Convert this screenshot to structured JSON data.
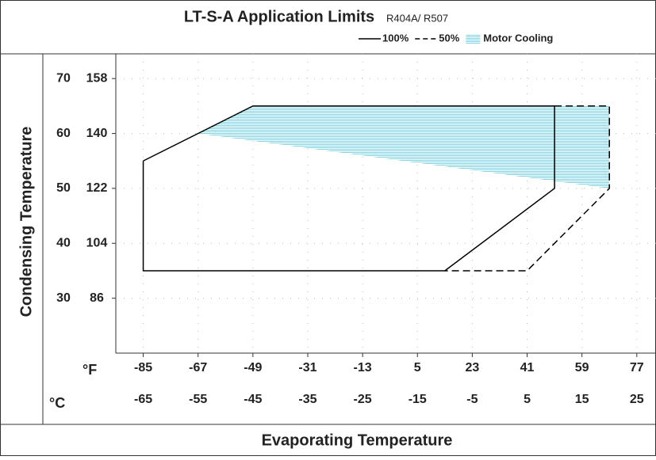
{
  "chart_data": {
    "type": "envelope",
    "title": "LT-S-A  Application Limits",
    "subtitle": "R404A/ R507",
    "y_label": "Condensing Temperature",
    "x_label": "Evaporating Temperature",
    "unit_f": "°F",
    "unit_c": "°C",
    "xlim": [
      -70,
      28.5
    ],
    "ylim": [
      20,
      74.5
    ],
    "xticks": [
      -65,
      -55,
      -45,
      -35,
      -25,
      -15,
      -5,
      5,
      15,
      25
    ],
    "xticks_f": [
      -85,
      -67,
      -49,
      -31,
      -13,
      5,
      23,
      41,
      59,
      77
    ],
    "yticks": [
      30,
      40,
      50,
      60,
      70
    ],
    "yticks_f": [
      86,
      104,
      122,
      140,
      158
    ],
    "grid": true,
    "series": [
      {
        "name": "Motor Cooling",
        "style": "hatch",
        "color": "#7fd3e0",
        "x": [
          -55,
          -45,
          20,
          20
        ],
        "values": [
          60,
          65,
          65,
          50
        ]
      },
      {
        "name": "100%",
        "style": "solid",
        "color": "#000000",
        "x": [
          -65,
          -45,
          10,
          10,
          -10,
          -65,
          -65
        ],
        "values": [
          55,
          65,
          65,
          50,
          35,
          35,
          55
        ]
      },
      {
        "name": "50%",
        "style": "dashed",
        "color": "#000000",
        "x": [
          10,
          20,
          20,
          5,
          -10
        ],
        "values": [
          65,
          65,
          50,
          35,
          35
        ]
      }
    ]
  }
}
